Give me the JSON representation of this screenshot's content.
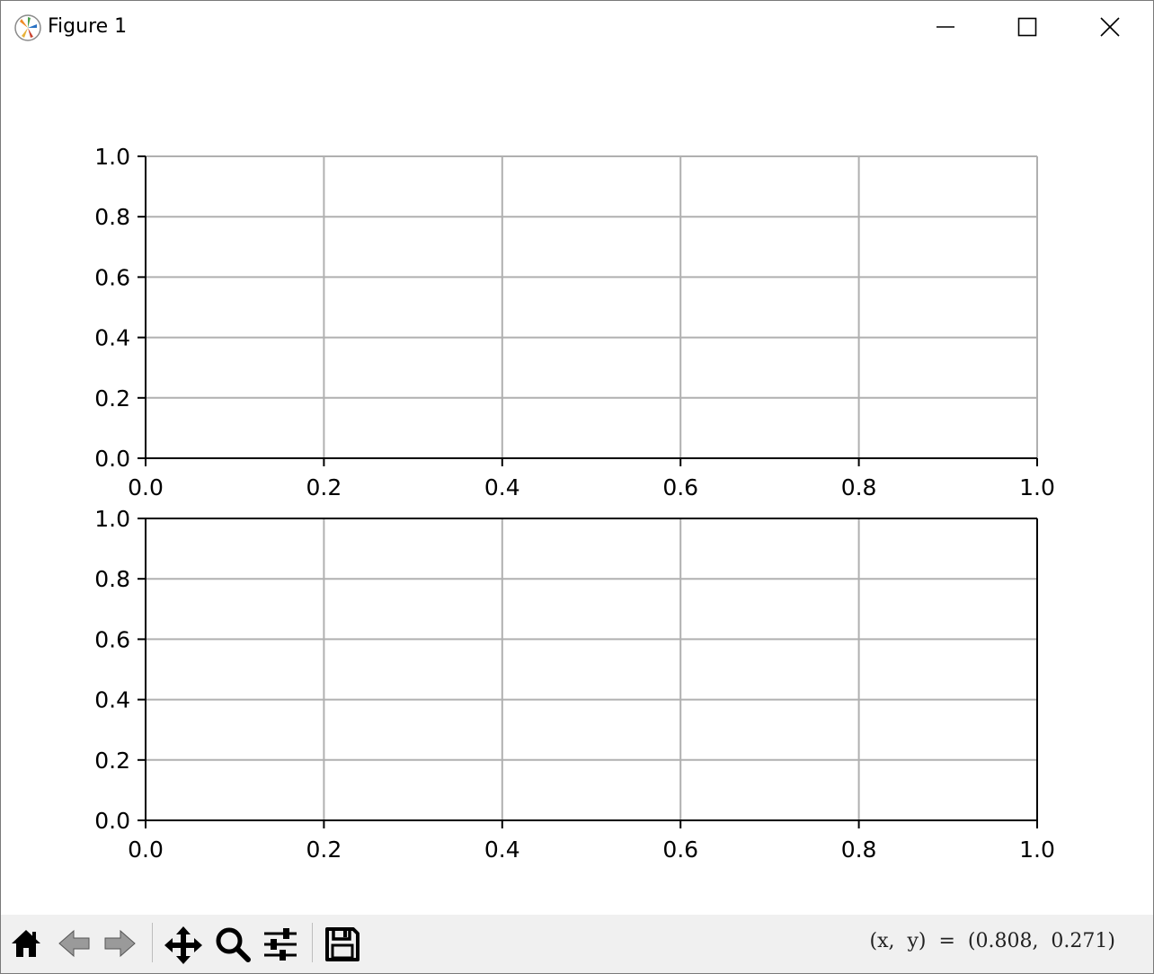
{
  "window": {
    "title": "Figure 1",
    "controls": [
      "minimize-icon",
      "maximize-icon",
      "close-icon"
    ]
  },
  "toolbar": {
    "buttons": [
      {
        "name": "home-button",
        "icon": "home-icon"
      },
      {
        "name": "back-button",
        "icon": "left-arrow-icon"
      },
      {
        "name": "forward-button",
        "icon": "right-arrow-icon"
      },
      {
        "name": "pan-button",
        "icon": "move-icon"
      },
      {
        "name": "zoom-button",
        "icon": "magnifier-icon"
      },
      {
        "name": "configure-subplots-button",
        "icon": "sliders-icon"
      },
      {
        "name": "save-button",
        "icon": "floppy-disk-icon"
      }
    ],
    "coordinates": "(x,  y)  =  (0.808,  0.271)"
  },
  "chart_data": [
    {
      "type": "line",
      "series": [],
      "title": "",
      "xlabel": "",
      "ylabel": "",
      "xlim": [
        0.0,
        1.0
      ],
      "ylim": [
        0.0,
        1.0
      ],
      "xticks": [
        "0.0",
        "0.2",
        "0.4",
        "0.6",
        "0.8",
        "1.0"
      ],
      "yticks": [
        "0.0",
        "0.2",
        "0.4",
        "0.6",
        "0.8",
        "1.0"
      ],
      "grid": true,
      "spines": "left and bottom only"
    },
    {
      "type": "line",
      "series": [],
      "title": "",
      "xlabel": "",
      "ylabel": "",
      "xlim": [
        0.0,
        1.0
      ],
      "ylim": [
        0.0,
        1.0
      ],
      "xticks": [
        "0.0",
        "0.2",
        "0.4",
        "0.6",
        "0.8",
        "1.0"
      ],
      "yticks": [
        "0.0",
        "0.2",
        "0.4",
        "0.6",
        "0.8",
        "1.0"
      ],
      "grid": true,
      "spines": "all four"
    }
  ],
  "colors": {
    "grid": "#b0b0b0",
    "axis": "#000000",
    "toolbar_bg": "#f0f0f0"
  }
}
